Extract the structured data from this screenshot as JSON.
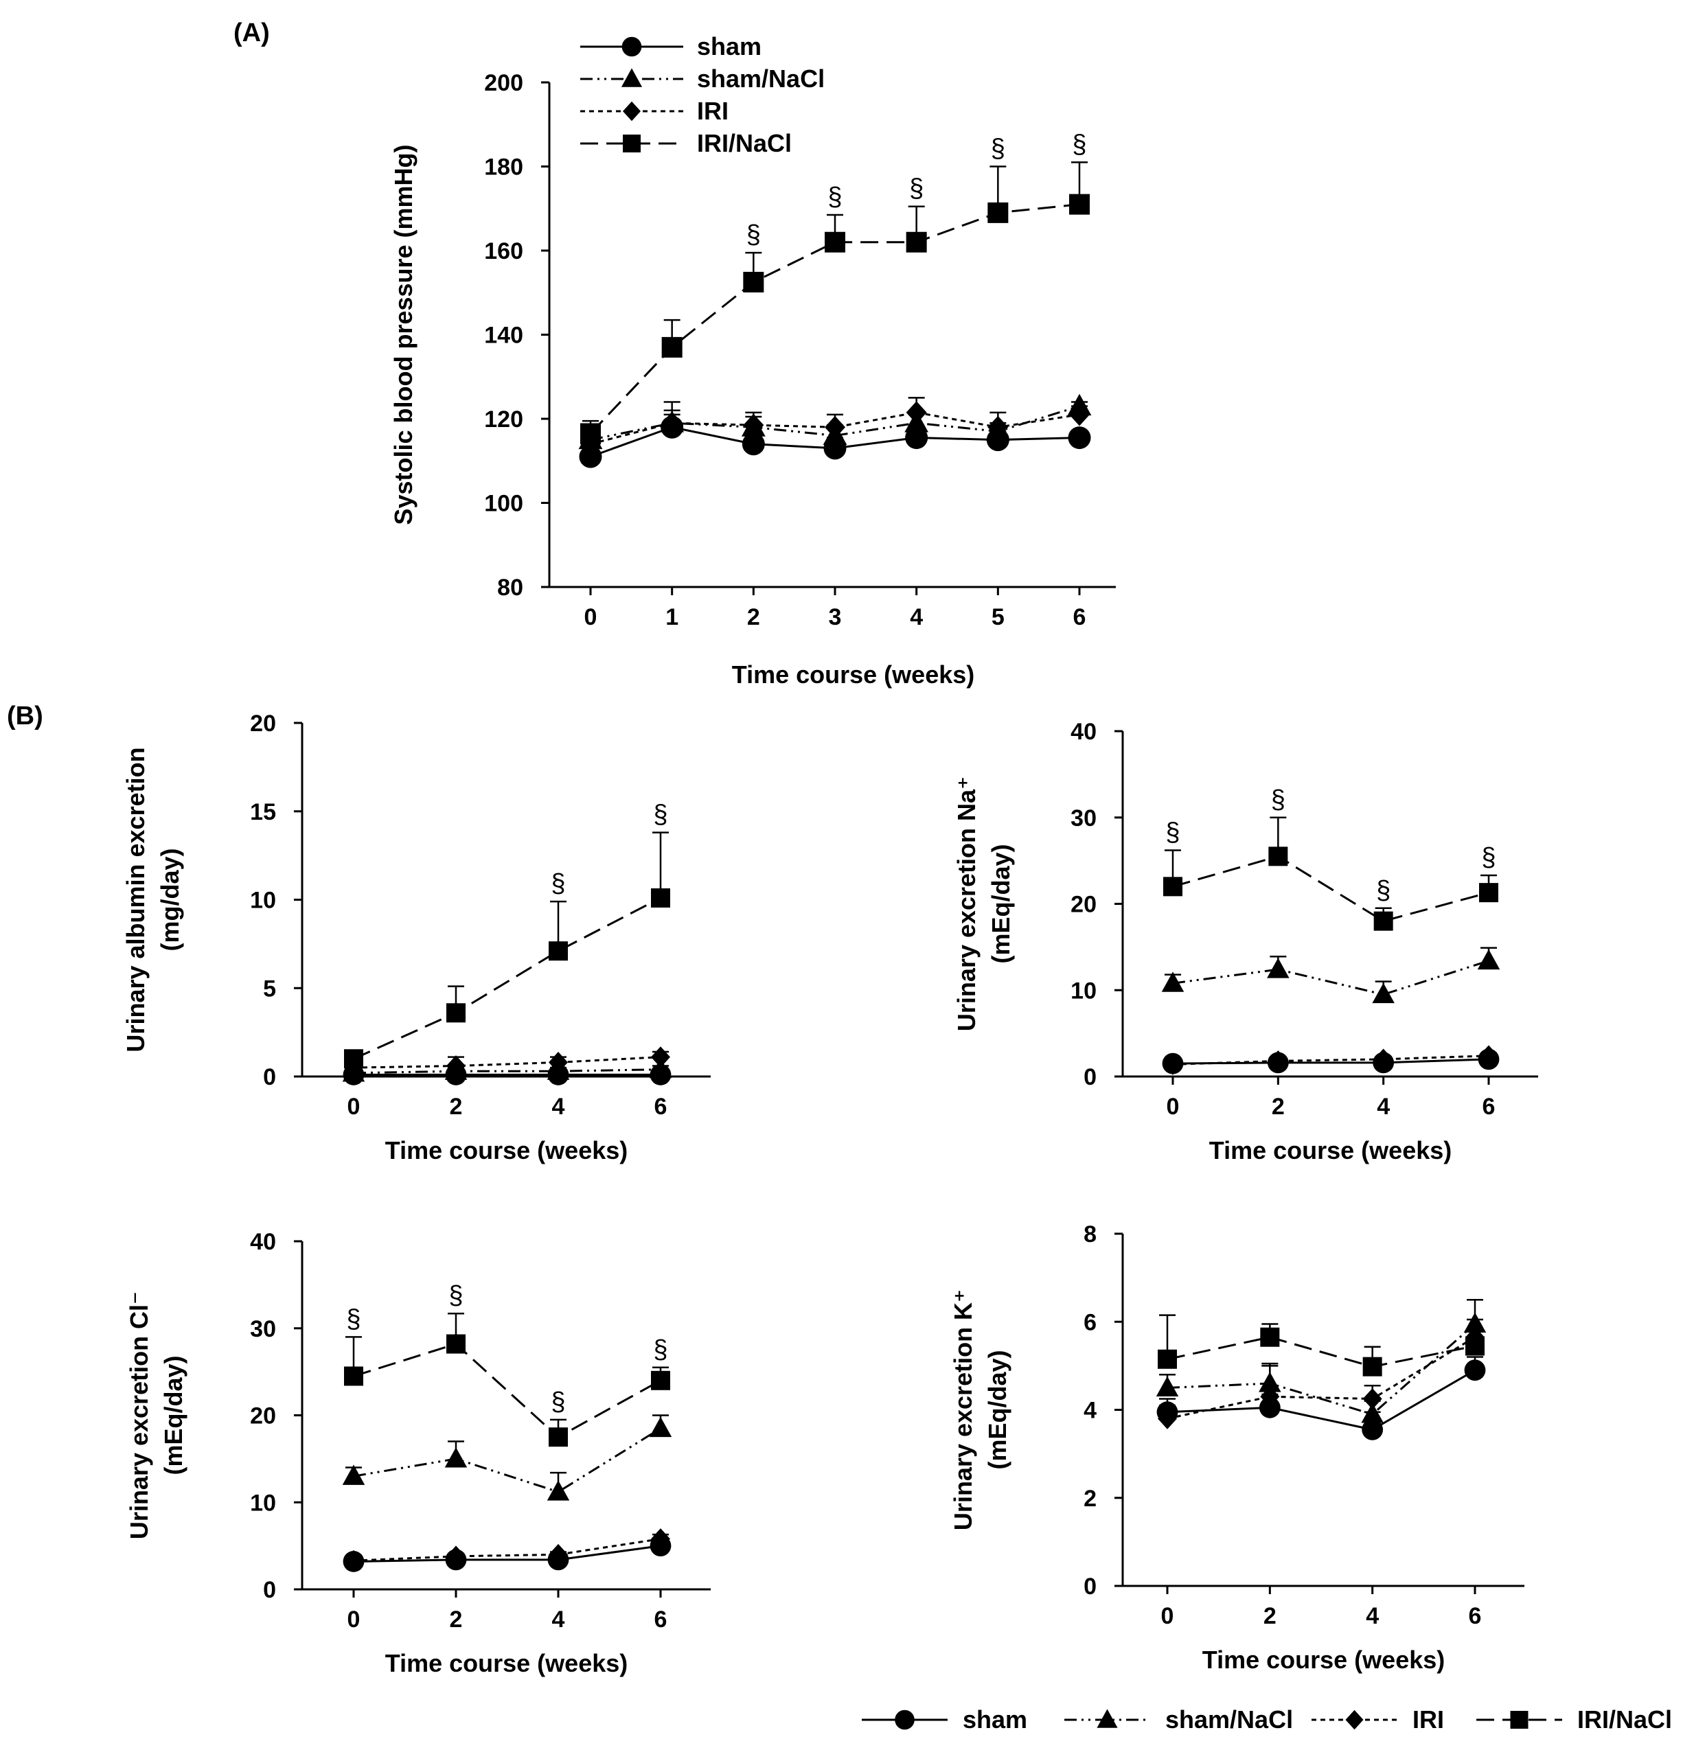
{
  "figure": {
    "panel_a_label": "(A)",
    "panel_b_label": "(B)"
  },
  "legend": {
    "entries": [
      "sham",
      "sham/NaCl",
      "IRI",
      "IRI/NaCl"
    ]
  },
  "chart_data": [
    {
      "id": "A",
      "type": "line",
      "title": "",
      "xlabel": "Time course (weeks)",
      "ylabel": "Systolic blood pressure (mmHg)",
      "ylabel_lines": [
        "Systolic blood pressure (mmHg)"
      ],
      "x": [
        0,
        1,
        2,
        3,
        4,
        5,
        6
      ],
      "xticks": [
        "0",
        "1",
        "2",
        "3",
        "4",
        "5",
        "6"
      ],
      "ylim": [
        80,
        200
      ],
      "yticks": [
        80,
        100,
        120,
        140,
        160,
        180,
        200
      ],
      "series": [
        {
          "name": "sham",
          "values": [
            111,
            118,
            114,
            113,
            115.5,
            115,
            115.5
          ],
          "err": [
            2,
            3,
            2,
            2.5,
            2,
            2,
            1.5
          ]
        },
        {
          "name": "sham/NaCl",
          "values": [
            115,
            119,
            118,
            116,
            119,
            117,
            123
          ],
          "err": [
            2,
            3,
            2.5,
            2.5,
            2.5,
            2,
            1
          ]
        },
        {
          "name": "IRI",
          "values": [
            114,
            119,
            118.5,
            118,
            121.5,
            118,
            121
          ],
          "err": [
            2,
            5,
            3,
            3,
            3.5,
            3.5,
            2
          ]
        },
        {
          "name": "IRI/NaCl",
          "values": [
            116.5,
            137,
            152.5,
            162,
            162,
            169,
            171
          ],
          "err": [
            3,
            6.5,
            7,
            6.5,
            8.5,
            11,
            10
          ]
        }
      ],
      "sig": {
        "marker": "§",
        "series": "IRI/NaCl",
        "x": [
          2,
          3,
          4,
          5,
          6
        ]
      }
    },
    {
      "id": "B1",
      "type": "line",
      "title": "",
      "xlabel": "Time course (weeks)",
      "ylabel": "Urinary albumin excretion (mg/day)",
      "ylabel_lines": [
        "Urinary albumin excretion",
        "(mg/day)"
      ],
      "x": [
        0,
        2,
        4,
        6
      ],
      "xticks": [
        "0",
        "2",
        "4",
        "6"
      ],
      "ylim": [
        0,
        20
      ],
      "yticks": [
        0,
        5,
        10,
        15,
        20
      ],
      "series": [
        {
          "name": "sham",
          "values": [
            0.1,
            0.1,
            0.1,
            0.1
          ],
          "err": [
            0,
            0,
            0,
            0
          ]
        },
        {
          "name": "sham/NaCl",
          "values": [
            0.2,
            0.3,
            0.3,
            0.4
          ],
          "err": [
            0.1,
            0.2,
            0.2,
            0.2
          ]
        },
        {
          "name": "IRI",
          "values": [
            0.5,
            0.6,
            0.8,
            1.1
          ],
          "err": [
            0.3,
            0.5,
            0.3,
            0.3
          ]
        },
        {
          "name": "IRI/NaCl",
          "values": [
            1.0,
            3.6,
            7.1,
            10.1
          ],
          "err": [
            0.4,
            1.5,
            2.8,
            3.7
          ]
        }
      ],
      "sig": {
        "marker": "§",
        "series": "IRI/NaCl",
        "x": [
          4,
          6
        ]
      }
    },
    {
      "id": "B2",
      "type": "line",
      "title": "",
      "xlabel": "Time course (weeks)",
      "ylabel": "Urinary excretion Na⁺ (mEq/day)",
      "ylabel_lines": [
        "Urinary excretion Na⁺",
        "(mEq/day)"
      ],
      "x": [
        0,
        2,
        4,
        6
      ],
      "xticks": [
        "0",
        "2",
        "4",
        "6"
      ],
      "ylim": [
        0,
        40
      ],
      "yticks": [
        0,
        10,
        20,
        30,
        40
      ],
      "series": [
        {
          "name": "sham",
          "values": [
            1.5,
            1.6,
            1.6,
            2.0
          ],
          "err": [
            0.3,
            0.3,
            0.3,
            0.3
          ]
        },
        {
          "name": "sham/NaCl",
          "values": [
            10.8,
            12.4,
            9.5,
            13.4
          ],
          "err": [
            1.0,
            1.5,
            1.5,
            1.5
          ]
        },
        {
          "name": "IRI",
          "values": [
            1.4,
            1.8,
            2.0,
            2.4
          ],
          "err": [
            0.3,
            0.3,
            0.3,
            0.3
          ]
        },
        {
          "name": "IRI/NaCl",
          "values": [
            22.0,
            25.5,
            18.0,
            21.3
          ],
          "err": [
            4.2,
            4.5,
            1.5,
            2.0
          ]
        }
      ],
      "sig": {
        "marker": "§",
        "series": "IRI/NaCl",
        "x": [
          0,
          2,
          4,
          6
        ]
      }
    },
    {
      "id": "B3",
      "type": "line",
      "title": "",
      "xlabel": "Time course (weeks)",
      "ylabel": "Urinary excretion Cl⁻ (mEq/day)",
      "ylabel_lines": [
        "Urinary excretion Cl⁻",
        "(mEq/day)"
      ],
      "x": [
        0,
        2,
        4,
        6
      ],
      "xticks": [
        "0",
        "2",
        "4",
        "6"
      ],
      "ylim": [
        0,
        40
      ],
      "yticks": [
        0,
        10,
        20,
        30,
        40
      ],
      "series": [
        {
          "name": "sham",
          "values": [
            3.2,
            3.4,
            3.4,
            5.0
          ],
          "err": [
            0.3,
            0.3,
            0.3,
            0.4
          ]
        },
        {
          "name": "sham/NaCl",
          "values": [
            13.0,
            15.0,
            11.2,
            18.5
          ],
          "err": [
            1.0,
            2.0,
            2.2,
            1.5
          ]
        },
        {
          "name": "IRI",
          "values": [
            3.3,
            3.8,
            4.0,
            5.8
          ],
          "err": [
            0.3,
            0.3,
            0.3,
            0.5
          ]
        },
        {
          "name": "IRI/NaCl",
          "values": [
            24.5,
            28.2,
            17.5,
            24.0
          ],
          "err": [
            4.5,
            3.5,
            2.0,
            1.5
          ]
        }
      ],
      "sig": {
        "marker": "§",
        "series": "IRI/NaCl",
        "x": [
          0,
          2,
          4,
          6
        ]
      }
    },
    {
      "id": "B4",
      "type": "line",
      "title": "",
      "xlabel": "Time course (weeks)",
      "ylabel": "Urinary excretion K⁺ (mEq/day)",
      "ylabel_lines": [
        "Urinary excretion K⁺",
        "(mEq/day)"
      ],
      "x": [
        0,
        2,
        4,
        6
      ],
      "xticks": [
        "0",
        "2",
        "4",
        "6"
      ],
      "ylim": [
        0,
        8
      ],
      "yticks": [
        0,
        2,
        4,
        6,
        8
      ],
      "series": [
        {
          "name": "sham",
          "values": [
            3.95,
            4.05,
            3.55,
            4.9
          ],
          "err": [
            0.3,
            0.3,
            0.4,
            0.3
          ]
        },
        {
          "name": "sham/NaCl",
          "values": [
            4.5,
            4.6,
            3.9,
            5.95
          ],
          "err": [
            0.3,
            0.4,
            0.3,
            0.55
          ]
        },
        {
          "name": "IRI",
          "values": [
            3.8,
            4.3,
            4.25,
            5.65
          ],
          "err": [
            0.3,
            0.75,
            0.3,
            0.4
          ]
        },
        {
          "name": "IRI/NaCl",
          "values": [
            5.15,
            5.65,
            4.98,
            5.45
          ],
          "err": [
            1.0,
            0.3,
            0.45,
            0.4
          ]
        }
      ],
      "sig": null
    }
  ]
}
